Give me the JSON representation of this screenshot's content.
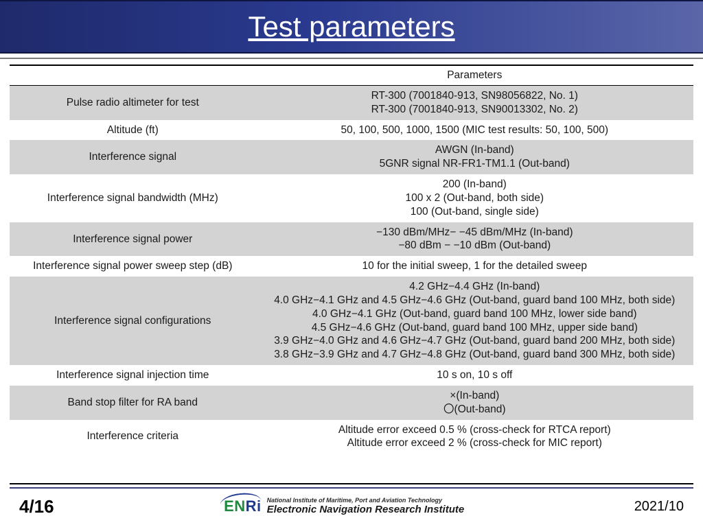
{
  "title": "Test parameters",
  "header_bg_gradient": [
    "#1f2a6b",
    "#2a3a8f",
    "#5a66a8"
  ],
  "table": {
    "columns": [
      "",
      "Parameters"
    ],
    "rows": [
      {
        "shaded": true,
        "label": "Pulse radio altimeter for test",
        "lines": [
          "RT-300 (7001840-913, SN98056822, No. 1)",
          "RT-300 (7001840-913, SN90013302, No. 2)"
        ]
      },
      {
        "shaded": false,
        "label": "Altitude (ft)",
        "lines": [
          "50, 100, 500, 1000, 1500 (MIC test results: 50, 100, 500)"
        ]
      },
      {
        "shaded": true,
        "label": "Interference signal",
        "lines": [
          "AWGN (In-band)",
          "5GNR signal NR-FR1-TM1.1 (Out-band)"
        ]
      },
      {
        "shaded": false,
        "label": "Interference signal bandwidth (MHz)",
        "lines": [
          "200 (In-band)",
          "100 x 2 (Out-band, both side)",
          "100 (Out-band, single side)"
        ]
      },
      {
        "shaded": true,
        "label": "Interference signal power",
        "lines": [
          "−130 dBm/MHz− −45 dBm/MHz (In-band)",
          "−80 dBm − −10 dBm (Out-band)"
        ]
      },
      {
        "shaded": false,
        "label": "Interference signal power sweep step (dB)",
        "lines": [
          "10 for the initial sweep, 1 for the detailed sweep"
        ]
      },
      {
        "shaded": true,
        "label": "Interference signal configurations",
        "lines": [
          "4.2 GHz−4.4 GHz (In-band)",
          "4.0 GHz−4.1 GHz and 4.5 GHz−4.6 GHz (Out-band, guard band 100 MHz, both side)",
          "4.0 GHz−4.1 GHz (Out-band, guard band 100 MHz, lower side band)",
          "4.5 GHz−4.6 GHz (Out-band, guard band 100 MHz, upper side band)",
          "3.9 GHz−4.0 GHz and 4.6 GHz−4.7 GHz (Out-band, guard band 200 MHz, both side)",
          "3.8 GHz−3.9 GHz and 4.7 GHz−4.8 GHz (Out-band, guard band 300 MHz, both side)"
        ]
      },
      {
        "shaded": false,
        "label": "Interference signal injection time",
        "lines": [
          "10 s on, 10 s off"
        ]
      },
      {
        "shaded": true,
        "label": "Band stop filter for RA band",
        "lines": [
          "×(In-band)",
          "〇(Out-band)"
        ]
      },
      {
        "shaded": false,
        "label": "Interference criteria",
        "lines": [
          "Altitude error exceed 0.5 % (cross-check for RTCA report)",
          "Altitude error exceed 2 % (cross-check for MIC report)"
        ]
      }
    ]
  },
  "footer": {
    "page": "4/16",
    "logo": {
      "en": "EN",
      "ri": "Ri"
    },
    "org_small": "National Institute of Maritime, Port and Aviation Technology",
    "org_big": "Electronic Navigation Research Institute",
    "date": "2021/10"
  }
}
